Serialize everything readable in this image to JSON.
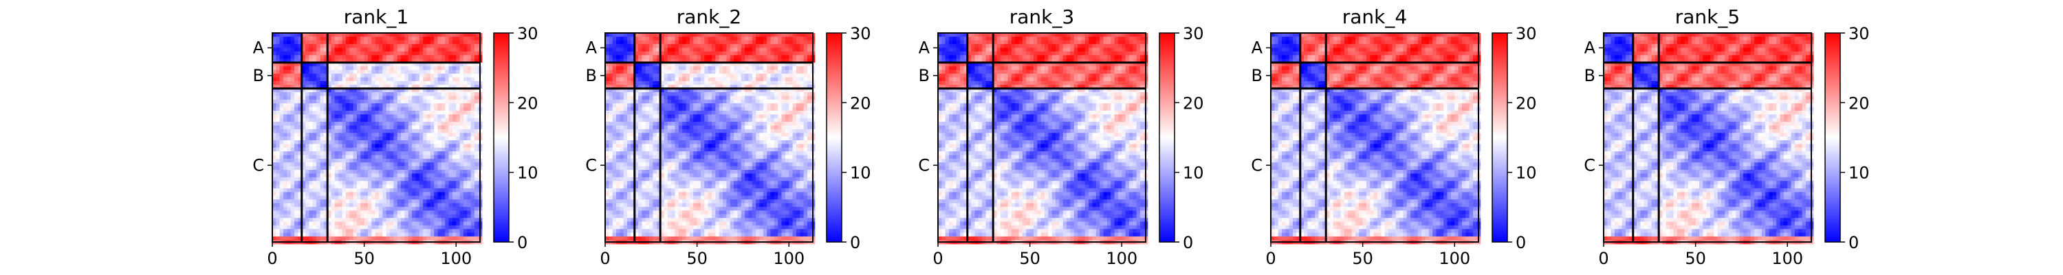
{
  "figure": {
    "background": "#ffffff"
  },
  "chart_data": [
    {
      "type": "heatmap",
      "title": "rank_1",
      "chains": [
        "A",
        "B",
        "C"
      ],
      "chain_boundaries": [
        0,
        16,
        30,
        113
      ],
      "xlim": [
        0,
        113
      ],
      "xticks": [
        0,
        50,
        100
      ],
      "colorbar": {
        "vmin": 0,
        "vmax": 30,
        "ticks": [
          0,
          10,
          20,
          30
        ],
        "cmap": [
          "#0000ff",
          "#ffffff",
          "#ff0000"
        ]
      },
      "block_means": [
        [
          2,
          24,
          26
        ],
        [
          24,
          2,
          14
        ],
        [
          12,
          12,
          4
        ]
      ]
    },
    {
      "type": "heatmap",
      "title": "rank_2",
      "chains": [
        "A",
        "B",
        "C"
      ],
      "chain_boundaries": [
        0,
        16,
        30,
        113
      ],
      "xlim": [
        0,
        113
      ],
      "xticks": [
        0,
        50,
        100
      ],
      "colorbar": {
        "vmin": 0,
        "vmax": 30,
        "ticks": [
          0,
          10,
          20,
          30
        ],
        "cmap": [
          "#0000ff",
          "#ffffff",
          "#ff0000"
        ]
      },
      "block_means": [
        [
          2,
          24,
          26
        ],
        [
          24,
          2,
          15
        ],
        [
          12,
          12,
          4
        ]
      ]
    },
    {
      "type": "heatmap",
      "title": "rank_3",
      "chains": [
        "A",
        "B",
        "C"
      ],
      "chain_boundaries": [
        0,
        16,
        30,
        113
      ],
      "xlim": [
        0,
        113
      ],
      "xticks": [
        0,
        50,
        100
      ],
      "colorbar": {
        "vmin": 0,
        "vmax": 30,
        "ticks": [
          0,
          10,
          20,
          30
        ],
        "cmap": [
          "#0000ff",
          "#ffffff",
          "#ff0000"
        ]
      },
      "block_means": [
        [
          2,
          24,
          26
        ],
        [
          24,
          2,
          24
        ],
        [
          12,
          12,
          4
        ]
      ]
    },
    {
      "type": "heatmap",
      "title": "rank_4",
      "chains": [
        "A",
        "B",
        "C"
      ],
      "chain_boundaries": [
        0,
        16,
        30,
        113
      ],
      "xlim": [
        0,
        113
      ],
      "xticks": [
        0,
        50,
        100
      ],
      "colorbar": {
        "vmin": 0,
        "vmax": 30,
        "ticks": [
          0,
          10,
          20,
          30
        ],
        "cmap": [
          "#0000ff",
          "#ffffff",
          "#ff0000"
        ]
      },
      "block_means": [
        [
          2,
          24,
          26
        ],
        [
          24,
          2,
          24
        ],
        [
          12,
          12,
          4
        ]
      ]
    },
    {
      "type": "heatmap",
      "title": "rank_5",
      "chains": [
        "A",
        "B",
        "C"
      ],
      "chain_boundaries": [
        0,
        16,
        30,
        113
      ],
      "xlim": [
        0,
        113
      ],
      "xticks": [
        0,
        50,
        100
      ],
      "colorbar": {
        "vmin": 0,
        "vmax": 30,
        "ticks": [
          0,
          10,
          20,
          30
        ],
        "cmap": [
          "#0000ff",
          "#ffffff",
          "#ff0000"
        ]
      },
      "block_means": [
        [
          2,
          24,
          26
        ],
        [
          24,
          2,
          24
        ],
        [
          12,
          12,
          4
        ]
      ]
    }
  ]
}
